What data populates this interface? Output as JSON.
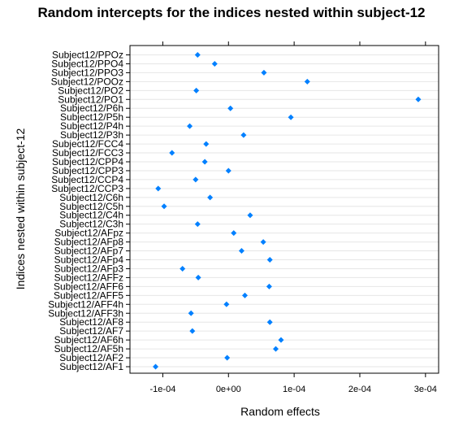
{
  "chart_data": {
    "type": "scatter",
    "title": "Random intercepts for the indices nested within subject-12",
    "xlabel": "Random effects",
    "ylabel": "Indices nested within subject-12",
    "xlim": [
      -0.00015,
      0.00032
    ],
    "x_ticks": [
      -0.0001,
      0,
      0.0001,
      0.0002,
      0.0003
    ],
    "x_tick_labels": [
      "-1e-04",
      "0e+00",
      "1e-04",
      "2e-04",
      "3e-04"
    ],
    "grid": true,
    "marker_color": "#0080ff",
    "categories": [
      "Subject12/AF1",
      "Subject12/AF2",
      "Subject12/AF5h",
      "Subject12/AF6h",
      "Subject12/AF7",
      "Subject12/AF8",
      "Subject12/AFF3h",
      "Subject12/AFF4h",
      "Subject12/AFF5",
      "Subject12/AFF6",
      "Subject12/AFFz",
      "Subject12/AFp3",
      "Subject12/AFp4",
      "Subject12/AFp7",
      "Subject12/AFp8",
      "Subject12/AFpz",
      "Subject12/C3h",
      "Subject12/C4h",
      "Subject12/C5h",
      "Subject12/C6h",
      "Subject12/CCP3",
      "Subject12/CCP4",
      "Subject12/CPP3",
      "Subject12/CPP4",
      "Subject12/FCC3",
      "Subject12/FCC4",
      "Subject12/P3h",
      "Subject12/P4h",
      "Subject12/P5h",
      "Subject12/P6h",
      "Subject12/PO1",
      "Subject12/PO2",
      "Subject12/POOz",
      "Subject12/PPO3",
      "Subject12/PPO4",
      "Subject12/PPOz"
    ],
    "values": [
      -0.000111,
      -2e-06,
      7.2e-05,
      8e-05,
      -5.5e-05,
      6.3e-05,
      -5.7e-05,
      -3e-06,
      2.5e-05,
      6.2e-05,
      -4.6e-05,
      -7e-05,
      6.3e-05,
      2e-05,
      5.3e-05,
      8e-06,
      -4.7e-05,
      3.3e-05,
      -9.8e-05,
      -2.8e-05,
      -0.000107,
      -5e-05,
      0.0,
      -3.6e-05,
      -8.6e-05,
      -3.4e-05,
      2.3e-05,
      -5.9e-05,
      9.5e-05,
      3e-06,
      0.000289,
      -4.9e-05,
      0.00012,
      5.4e-05,
      -2.1e-05,
      -4.7e-05
    ]
  }
}
